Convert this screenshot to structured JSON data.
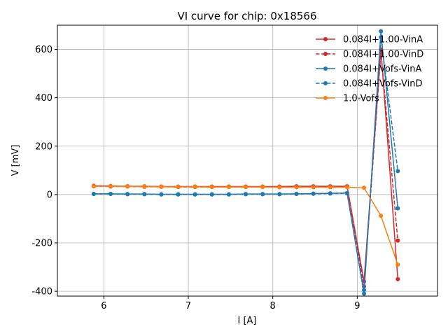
{
  "chart_data": {
    "type": "line",
    "title": "VI curve for chip: 0x18566",
    "xlabel": "I [A]",
    "ylabel": "V [mV]",
    "xlim": [
      5.45,
      9.95
    ],
    "ylim": [
      -420,
      700
    ],
    "xticks": [
      6,
      7,
      8,
      9
    ],
    "yticks": [
      -400,
      -200,
      0,
      200,
      400,
      600
    ],
    "grid": true,
    "legend_position": "top-right",
    "x": [
      5.88,
      6.08,
      6.28,
      6.48,
      6.68,
      6.88,
      7.08,
      7.28,
      7.48,
      7.68,
      7.88,
      8.08,
      8.28,
      8.48,
      8.68,
      8.88,
      9.08,
      9.28,
      9.48
    ],
    "series": [
      {
        "name": "0.084I+1.00-VinA",
        "color": "#d62728",
        "dash": "solid",
        "values": [
          36,
          35,
          34,
          34,
          33,
          33,
          33,
          33,
          33,
          33,
          33,
          33,
          34,
          34,
          34,
          34,
          -360,
          600,
          -350
        ]
      },
      {
        "name": "0.084I+1.00-VinD",
        "color": "#d62728",
        "dash": "dashed",
        "values": [
          34,
          33,
          33,
          32,
          32,
          31,
          31,
          31,
          31,
          31,
          31,
          31,
          32,
          32,
          32,
          32,
          -380,
          590,
          -190
        ]
      },
      {
        "name": "0.084I+Vofs-VinA",
        "color": "#1f77b4",
        "dash": "solid",
        "values": [
          3,
          3,
          2,
          2,
          1,
          1,
          1,
          1,
          1,
          2,
          2,
          2,
          3,
          4,
          5,
          6,
          -410,
          675,
          -57
        ]
      },
      {
        "name": "0.084I+Vofs-VinD",
        "color": "#1f77b4",
        "dash": "dashed",
        "values": [
          2,
          2,
          1,
          1,
          0,
          0,
          0,
          0,
          0,
          1,
          1,
          1,
          2,
          3,
          4,
          5,
          -395,
          650,
          97
        ]
      },
      {
        "name": "1.0-Vofs",
        "color": "#ff7f0e",
        "dash": "solid",
        "values": [
          34,
          34,
          33,
          33,
          32,
          32,
          32,
          31,
          31,
          31,
          31,
          30,
          30,
          30,
          30,
          30,
          28,
          -88,
          -290
        ]
      }
    ]
  }
}
